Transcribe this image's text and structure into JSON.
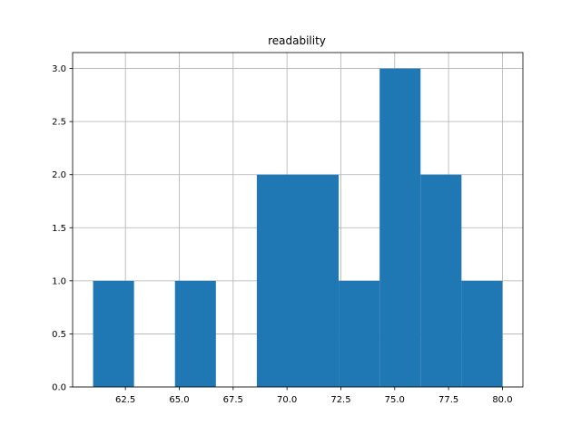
{
  "chart_data": {
    "type": "bar",
    "title": "readability",
    "xlabel": "",
    "ylabel": "",
    "xlim": [
      60.05,
      80.95
    ],
    "ylim": [
      0,
      3.15
    ],
    "grid": true,
    "bar_color": "#1f77b4",
    "bins": [
      {
        "x0": 61.0,
        "x1": 62.9,
        "count": 1
      },
      {
        "x0": 62.9,
        "x1": 64.8,
        "count": 0
      },
      {
        "x0": 64.8,
        "x1": 66.7,
        "count": 1
      },
      {
        "x0": 66.7,
        "x1": 68.6,
        "count": 0
      },
      {
        "x0": 68.6,
        "x1": 70.5,
        "count": 2
      },
      {
        "x0": 70.5,
        "x1": 72.4,
        "count": 2
      },
      {
        "x0": 72.4,
        "x1": 74.3,
        "count": 1
      },
      {
        "x0": 74.3,
        "x1": 76.2,
        "count": 3
      },
      {
        "x0": 76.2,
        "x1": 78.1,
        "count": 2
      },
      {
        "x0": 78.1,
        "x1": 80.0,
        "count": 1
      }
    ],
    "x_ticks": [
      "62.5",
      "65.0",
      "67.5",
      "70.0",
      "72.5",
      "75.0",
      "77.5",
      "80.0"
    ],
    "y_ticks": [
      "0.0",
      "0.5",
      "1.0",
      "1.5",
      "2.0",
      "2.5",
      "3.0"
    ]
  }
}
